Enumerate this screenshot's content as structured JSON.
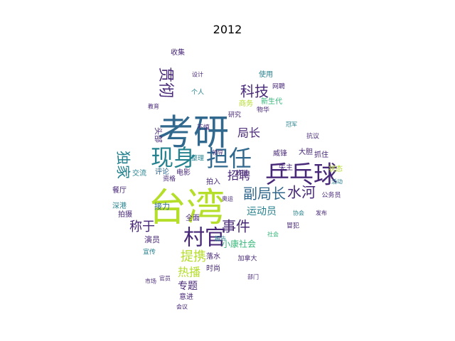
{
  "title": "2012",
  "colors": {
    "purple": "#482878",
    "dark_purple": "#3e1f63",
    "blue": "#31688e",
    "teal": "#26828e",
    "green": "#35b779",
    "lime": "#b5de2b",
    "yellow": "#d4e21a"
  },
  "words": [
    "考研",
    "台湾",
    "乒乓球",
    "现身",
    "担任",
    "村官",
    "贯彻",
    "科技",
    "独家",
    "招聘",
    "副局长",
    "事件",
    "水河",
    "称于",
    "提携",
    "局长",
    "运动员",
    "热播",
    "专题",
    "小康社会",
    "接力",
    "演员",
    "宣传",
    "全面",
    "交流",
    "餐厅",
    "深港",
    "拍摄",
    "评论",
    "使用",
    "网聘",
    "新生代",
    "威锋",
    "大胆",
    "失主",
    "抓住",
    "状态",
    "公务员",
    "个人",
    "收集",
    "商务",
    "落水",
    "时尚",
    "意进",
    "头部",
    "不慎",
    "整理",
    "电影",
    "拍入",
    "放送",
    "抗议",
    "资格",
    "冒犯",
    "加拿大",
    "研究",
    "物华",
    "领导",
    "奥运",
    "部门",
    "官员",
    "设计",
    "教育",
    "冠军",
    "协会",
    "发布",
    "报告",
    "会议",
    "市场",
    "活动",
    "社会"
  ]
}
